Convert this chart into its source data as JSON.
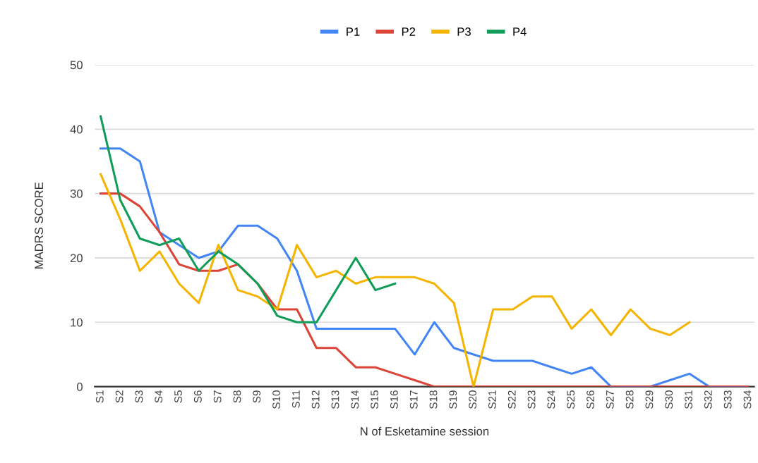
{
  "chart_data": {
    "type": "line",
    "xlabel": "N of Esketamine session",
    "ylabel": "MADRS SCORE",
    "categories": [
      "S1",
      "S2",
      "S3",
      "S4",
      "S5",
      "S6",
      "S7",
      "S8",
      "S9",
      "S10",
      "S11",
      "S12",
      "S13",
      "S14",
      "S15",
      "S16",
      "S17",
      "S18",
      "S19",
      "S20",
      "S21",
      "S22",
      "S23",
      "S24",
      "S25",
      "S26",
      "S27",
      "S28",
      "S29",
      "S30",
      "S31",
      "S32",
      "S33",
      "S34"
    ],
    "series": [
      {
        "name": "P1",
        "color": "#4285f4",
        "values": [
          37,
          37,
          35,
          24,
          22,
          20,
          21,
          25,
          25,
          23,
          18,
          9,
          9,
          9,
          9,
          9,
          5,
          10,
          6,
          5,
          4,
          4,
          4,
          3,
          2,
          3,
          0,
          0,
          0,
          1,
          2,
          0,
          0,
          0
        ]
      },
      {
        "name": "P2",
        "color": "#db4437",
        "values": [
          30,
          30,
          28,
          24,
          19,
          18,
          18,
          19,
          16,
          12,
          12,
          6,
          6,
          3,
          3,
          2,
          1,
          0,
          0,
          0,
          0,
          0,
          0,
          0,
          0,
          0,
          0,
          0,
          0,
          0,
          0,
          0,
          0,
          0
        ]
      },
      {
        "name": "P3",
        "color": "#f4b400",
        "values": [
          33,
          26,
          18,
          21,
          16,
          13,
          22,
          15,
          14,
          12,
          22,
          17,
          18,
          16,
          17,
          17,
          17,
          16,
          13,
          0,
          12,
          12,
          14,
          14,
          9,
          12,
          8,
          12,
          9,
          8,
          10,
          null,
          null,
          null
        ]
      },
      {
        "name": "P4",
        "color": "#0f9d58",
        "values": [
          42,
          29,
          23,
          22,
          23,
          18,
          21,
          19,
          16,
          11,
          10,
          10,
          15,
          20,
          15,
          16,
          null,
          null,
          null,
          null,
          null,
          null,
          null,
          null,
          null,
          null,
          null,
          null,
          null,
          null,
          null,
          null,
          null,
          null
        ]
      }
    ],
    "ylim": [
      0,
      50
    ],
    "yticks": [
      0,
      10,
      20,
      30,
      40,
      50
    ],
    "grid": "y",
    "legend": "top",
    "marker": "none",
    "line_style": "solid"
  }
}
